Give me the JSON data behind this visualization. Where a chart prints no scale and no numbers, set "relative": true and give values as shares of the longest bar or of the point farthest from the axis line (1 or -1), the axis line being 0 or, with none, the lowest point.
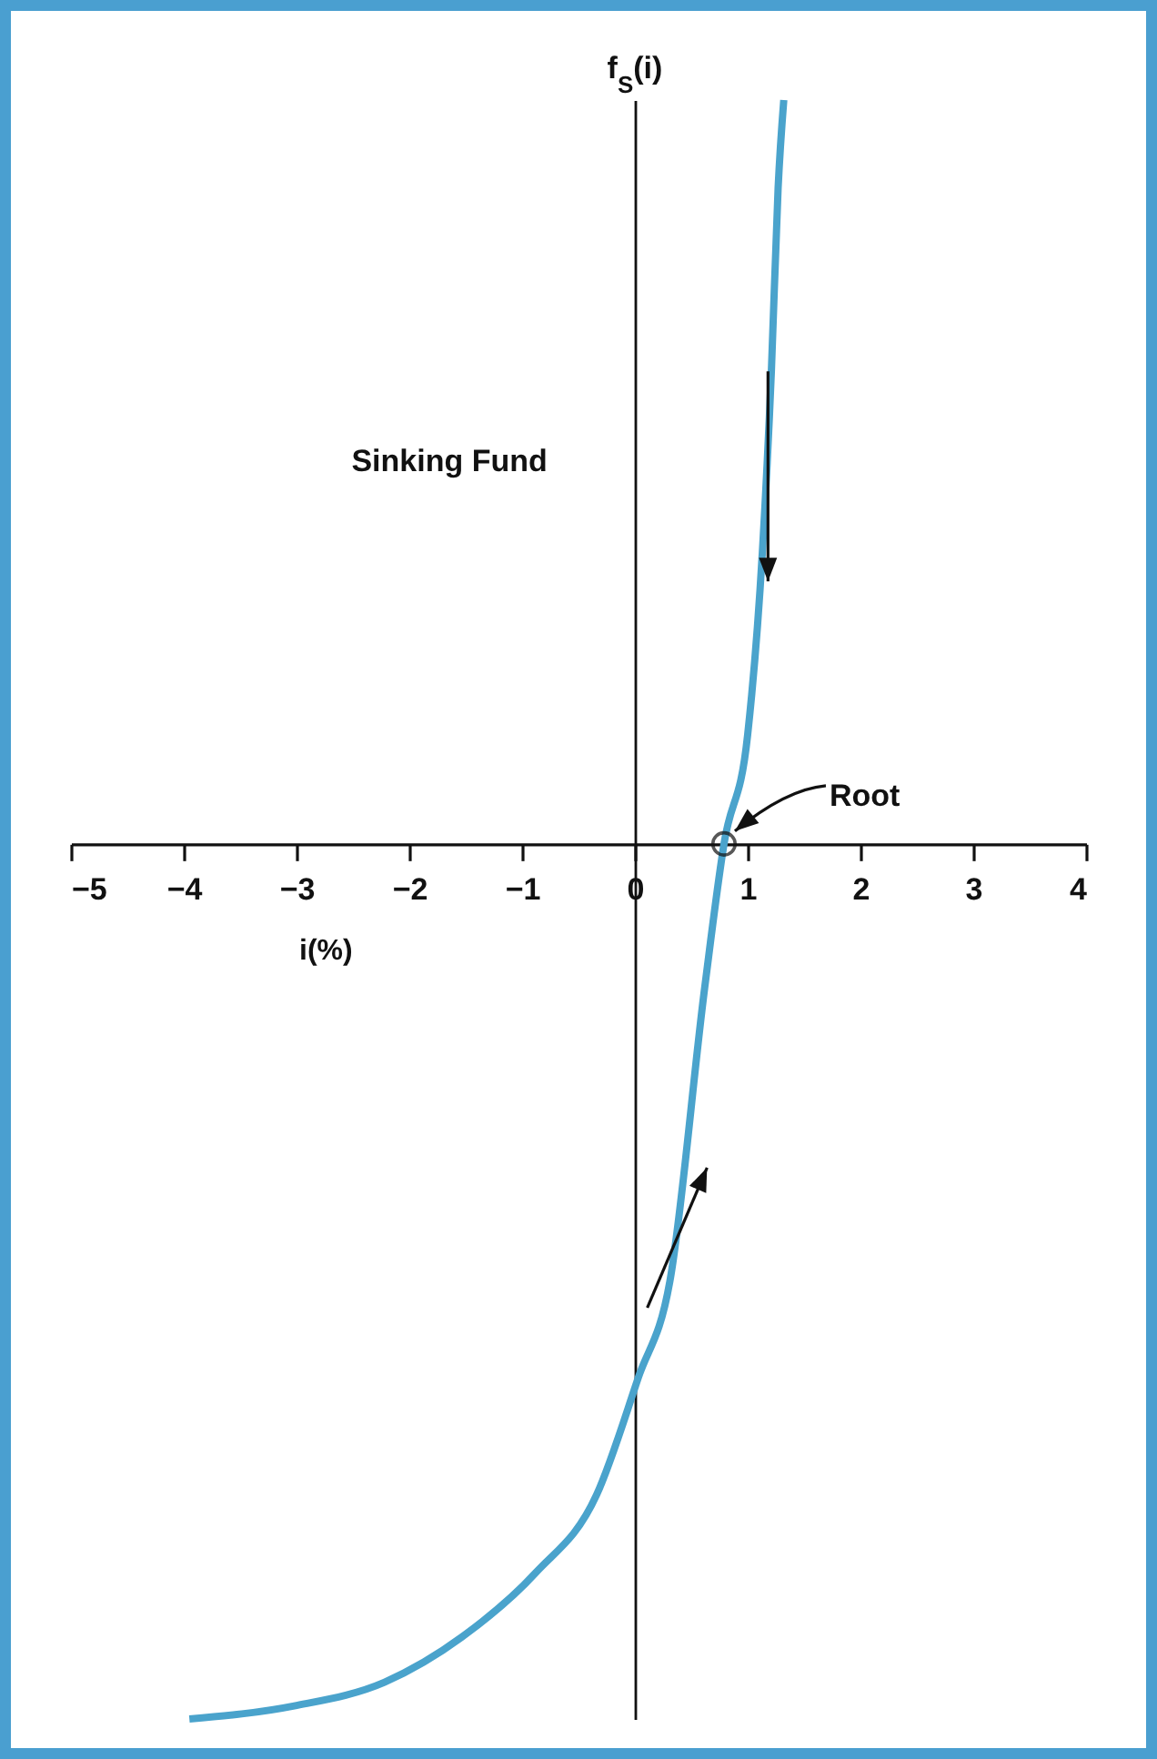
{
  "chart_data": {
    "type": "line",
    "title": "Sinking Fund",
    "xlabel": "i(%)",
    "ylabel": "f$_{S}$(i)",
    "relative": true,
    "xlim": [
      -5,
      4
    ],
    "xticks": [
      -5,
      -4,
      -3,
      -2,
      -1,
      0,
      1,
      2,
      3,
      4
    ],
    "x": [
      -3.95,
      -3.02,
      -2.22,
      -1.53,
      -0.88,
      -0.34,
      0.03,
      0.31,
      0.62,
      0.79,
      1.0,
      1.13,
      1.21,
      1.27,
      1.32
    ],
    "series": [
      {
        "color": "#4aa3cc",
        "values": [
          -1,
          -0.985,
          -0.958,
          -0.906,
          -0.833,
          -0.744,
          -0.61,
          -0.5,
          -0.163,
          0,
          0.125,
          0.333,
          0.54,
          0.75,
          0.85
        ]
      }
    ],
    "annotations": [
      {
        "text": "Root",
        "x": 0.79,
        "y": 0
      }
    ],
    "line_style": "solid"
  }
}
